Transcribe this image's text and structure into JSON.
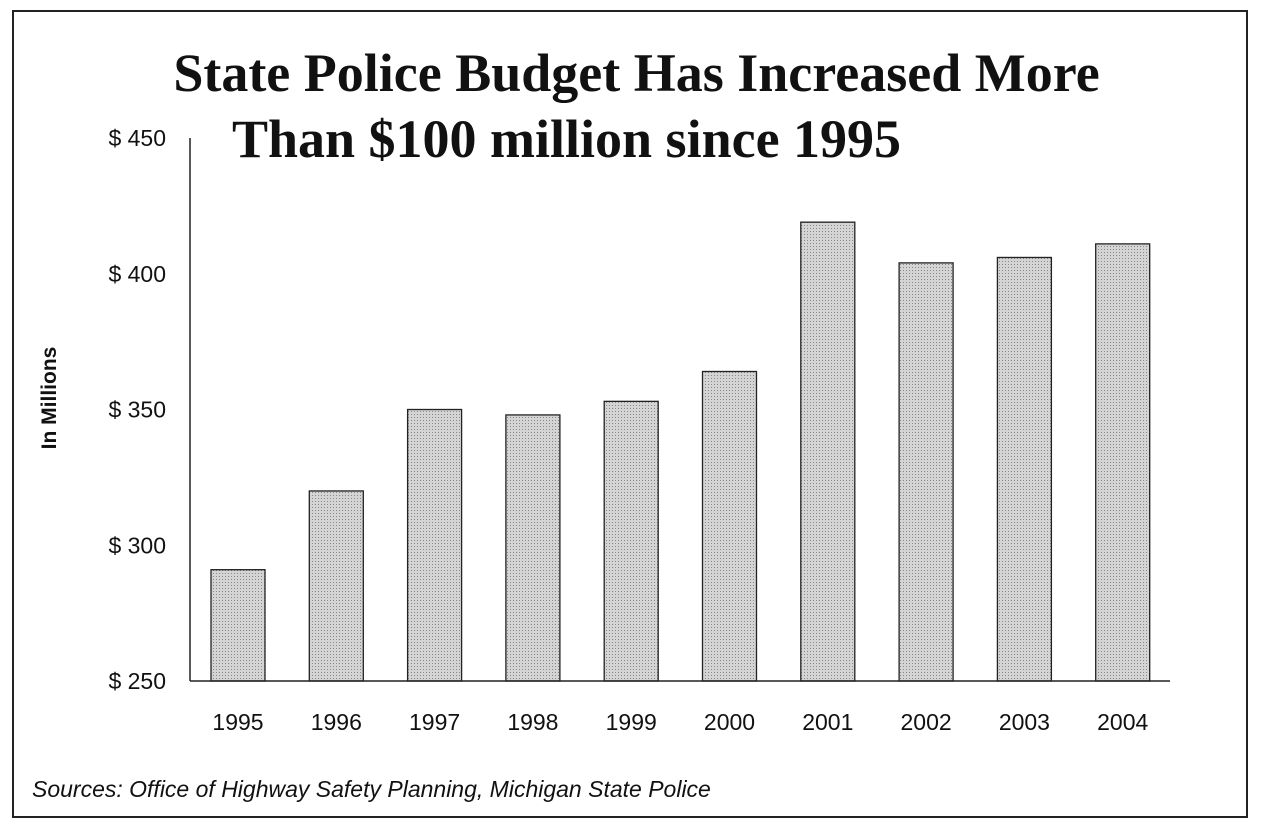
{
  "chart_data": {
    "type": "bar",
    "title": "State Police Budget Has Increased More Than $100 million since 1995",
    "title_lines": [
      "State Police Budget Has Increased More",
      "Than $100 million since 1995"
    ],
    "xlabel": "",
    "ylabel": "In Millions",
    "categories": [
      "1995",
      "1996",
      "1997",
      "1998",
      "1999",
      "2000",
      "2001",
      "2002",
      "2003",
      "2004"
    ],
    "values": [
      291,
      320,
      350,
      348,
      353,
      364,
      419,
      404,
      406,
      411
    ],
    "ylim": [
      250,
      450
    ],
    "yticks": [
      250,
      300,
      350,
      400,
      450
    ],
    "ytick_labels": [
      "$ 250",
      "$ 300",
      "$ 350",
      "$ 400",
      "$ 450"
    ],
    "grid": false,
    "bar_color": "#c8c8c8",
    "source": "Sources:  Office of Highway Safety Planning, Michigan State Police"
  }
}
